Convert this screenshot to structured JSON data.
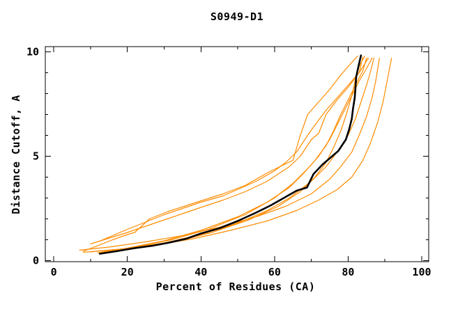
{
  "title": "S0949-D1",
  "chart_data": {
    "type": "line",
    "title": "S0949-D1",
    "xlabel": "Percent of Residues (CA)",
    "ylabel": "Distance Cutoff, A",
    "xlim": [
      -2.3,
      101.9
    ],
    "ylim": [
      -0.05,
      10.25
    ],
    "xticks_major": [
      0,
      20,
      40,
      60,
      80,
      100
    ],
    "xticks_minor": [
      10,
      30,
      50,
      70,
      90
    ],
    "yticks_major": [
      0,
      5,
      10
    ],
    "yticks_minor": [
      1,
      2,
      3,
      4,
      6,
      7,
      8,
      9
    ],
    "grid": false,
    "legend": "none",
    "colors": {
      "highlight_series": "#000000",
      "other_series": "#ff8c00",
      "axis": "#000000",
      "background": "#ffffff"
    },
    "series": [
      {
        "name": "orange-1",
        "color": "#ff8c00",
        "width": 1.2,
        "highlight": false,
        "points": [
          [
            8,
            0.45
          ],
          [
            12,
            0.72
          ],
          [
            16,
            1.0
          ],
          [
            20,
            1.25
          ],
          [
            22,
            1.35
          ],
          [
            26,
            2.0
          ],
          [
            31,
            2.35
          ],
          [
            38,
            2.75
          ],
          [
            46,
            3.2
          ],
          [
            52,
            3.6
          ],
          [
            58,
            4.2
          ],
          [
            62,
            4.55
          ],
          [
            65,
            4.8
          ],
          [
            67,
            6.0
          ],
          [
            69,
            7.0
          ],
          [
            72,
            7.6
          ],
          [
            75,
            8.2
          ],
          [
            77.6,
            8.8
          ],
          [
            80,
            9.3
          ],
          [
            82.6,
            9.8
          ]
        ]
      },
      {
        "name": "orange-2",
        "color": "#ff8c00",
        "width": 1.2,
        "highlight": false,
        "points": [
          [
            12,
            0.9
          ],
          [
            20,
            1.5
          ],
          [
            30,
            2.2
          ],
          [
            40,
            2.8
          ],
          [
            46,
            3.1
          ],
          [
            55,
            3.8
          ],
          [
            60,
            4.3
          ],
          [
            63,
            4.7
          ],
          [
            66,
            5.2
          ],
          [
            69,
            6.0
          ],
          [
            71,
            6.5
          ],
          [
            74,
            7.2
          ],
          [
            77,
            7.8
          ],
          [
            80,
            8.4
          ],
          [
            83,
            9.0
          ],
          [
            85.5,
            9.7
          ]
        ]
      },
      {
        "name": "orange-3",
        "color": "#ff8c00",
        "width": 1.2,
        "highlight": false,
        "points": [
          [
            10,
            0.8
          ],
          [
            20,
            1.35
          ],
          [
            30,
            1.95
          ],
          [
            40,
            2.55
          ],
          [
            46,
            2.9
          ],
          [
            52,
            3.3
          ],
          [
            58,
            3.8
          ],
          [
            64,
            4.5
          ],
          [
            67,
            5.0
          ],
          [
            70,
            5.8
          ],
          [
            72,
            6.1
          ],
          [
            74,
            7.0
          ],
          [
            77,
            7.7
          ],
          [
            80,
            8.3
          ],
          [
            83,
            9.0
          ],
          [
            84,
            9.75
          ]
        ]
      },
      {
        "name": "orange-4",
        "color": "#ff8c00",
        "width": 1.2,
        "highlight": false,
        "points": [
          [
            13,
            0.4
          ],
          [
            20,
            0.6
          ],
          [
            30,
            0.95
          ],
          [
            40,
            1.45
          ],
          [
            50,
            2.1
          ],
          [
            58,
            2.8
          ],
          [
            64,
            3.5
          ],
          [
            68,
            4.2
          ],
          [
            71,
            4.8
          ],
          [
            74,
            5.5
          ],
          [
            76,
            6.2
          ],
          [
            78,
            7.0
          ],
          [
            80,
            7.7
          ],
          [
            82,
            8.4
          ],
          [
            84,
            9.1
          ],
          [
            85,
            9.7
          ]
        ]
      },
      {
        "name": "orange-5",
        "color": "#ff8c00",
        "width": 1.2,
        "highlight": false,
        "points": [
          [
            12,
            0.38
          ],
          [
            22,
            0.65
          ],
          [
            32,
            1.0
          ],
          [
            42,
            1.5
          ],
          [
            52,
            2.2
          ],
          [
            60,
            3.0
          ],
          [
            65,
            3.7
          ],
          [
            69,
            4.4
          ],
          [
            72,
            5.0
          ],
          [
            75,
            5.8
          ],
          [
            77,
            6.5
          ],
          [
            79,
            7.2
          ],
          [
            81,
            7.9
          ],
          [
            83,
            8.6
          ],
          [
            85,
            9.2
          ],
          [
            86.5,
            9.7
          ]
        ]
      },
      {
        "name": "orange-6",
        "color": "#ff8c00",
        "width": 1.2,
        "highlight": false,
        "points": [
          [
            10,
            0.42
          ],
          [
            20,
            0.58
          ],
          [
            30,
            0.85
          ],
          [
            40,
            1.25
          ],
          [
            50,
            1.8
          ],
          [
            58,
            2.4
          ],
          [
            64,
            3.0
          ],
          [
            70,
            3.8
          ],
          [
            74,
            4.5
          ],
          [
            77,
            5.2
          ],
          [
            80,
            6.0
          ],
          [
            82,
            6.8
          ],
          [
            83.5,
            7.6
          ],
          [
            85,
            8.4
          ],
          [
            86,
            9.0
          ],
          [
            87,
            9.7
          ]
        ]
      },
      {
        "name": "orange-7",
        "color": "#ff8c00",
        "width": 1.2,
        "highlight": false,
        "points": [
          [
            7,
            0.5
          ],
          [
            15,
            0.65
          ],
          [
            25,
            0.9
          ],
          [
            35,
            1.2
          ],
          [
            45,
            1.6
          ],
          [
            55,
            2.1
          ],
          [
            63,
            2.6
          ],
          [
            70,
            3.2
          ],
          [
            75,
            3.9
          ],
          [
            78,
            4.5
          ],
          [
            81,
            5.2
          ],
          [
            83,
            6.0
          ],
          [
            85,
            6.9
          ],
          [
            86.5,
            7.8
          ],
          [
            87.5,
            8.6
          ],
          [
            88.5,
            9.7
          ]
        ]
      },
      {
        "name": "orange-8",
        "color": "#ff8c00",
        "width": 1.2,
        "highlight": false,
        "points": [
          [
            8,
            0.4
          ],
          [
            18,
            0.55
          ],
          [
            28,
            0.75
          ],
          [
            38,
            1.05
          ],
          [
            48,
            1.45
          ],
          [
            58,
            1.9
          ],
          [
            66,
            2.4
          ],
          [
            72,
            2.9
          ],
          [
            77,
            3.4
          ],
          [
            81,
            4.0
          ],
          [
            84,
            4.8
          ],
          [
            86,
            5.6
          ],
          [
            88,
            6.6
          ],
          [
            89.5,
            7.6
          ],
          [
            90.5,
            8.5
          ],
          [
            91.8,
            9.7
          ]
        ]
      },
      {
        "name": "orange-9",
        "color": "#ff8c00",
        "width": 1.2,
        "highlight": false,
        "points": [
          [
            13,
            0.35
          ],
          [
            23,
            0.6
          ],
          [
            33,
            0.9
          ],
          [
            43,
            1.35
          ],
          [
            53,
            1.95
          ],
          [
            61,
            2.6
          ],
          [
            67,
            3.3
          ],
          [
            71,
            4.0
          ],
          [
            74,
            4.7
          ],
          [
            76,
            5.4
          ],
          [
            78,
            6.2
          ],
          [
            79.5,
            7.0
          ],
          [
            81,
            7.9
          ],
          [
            82,
            8.7
          ],
          [
            83,
            9.3
          ],
          [
            84.5,
            9.8
          ]
        ]
      },
      {
        "name": "black-model",
        "color": "#000000",
        "width": 2.6,
        "highlight": true,
        "points": [
          [
            12.5,
            0.33
          ],
          [
            17,
            0.45
          ],
          [
            22,
            0.6
          ],
          [
            27,
            0.72
          ],
          [
            31,
            0.85
          ],
          [
            36,
            1.05
          ],
          [
            40,
            1.3
          ],
          [
            45,
            1.55
          ],
          [
            50,
            1.9
          ],
          [
            55,
            2.3
          ],
          [
            59,
            2.65
          ],
          [
            63,
            3.05
          ],
          [
            66,
            3.35
          ],
          [
            68.8,
            3.5
          ],
          [
            70.6,
            4.15
          ],
          [
            73,
            4.6
          ],
          [
            75,
            4.9
          ],
          [
            77.3,
            5.25
          ],
          [
            79.4,
            5.8
          ],
          [
            80.3,
            6.3
          ],
          [
            81,
            6.8
          ],
          [
            81.3,
            7.25
          ],
          [
            81.8,
            7.8
          ],
          [
            82,
            8.3
          ],
          [
            82.2,
            8.8
          ],
          [
            82.8,
            9.3
          ],
          [
            83.5,
            9.83
          ]
        ]
      }
    ]
  }
}
